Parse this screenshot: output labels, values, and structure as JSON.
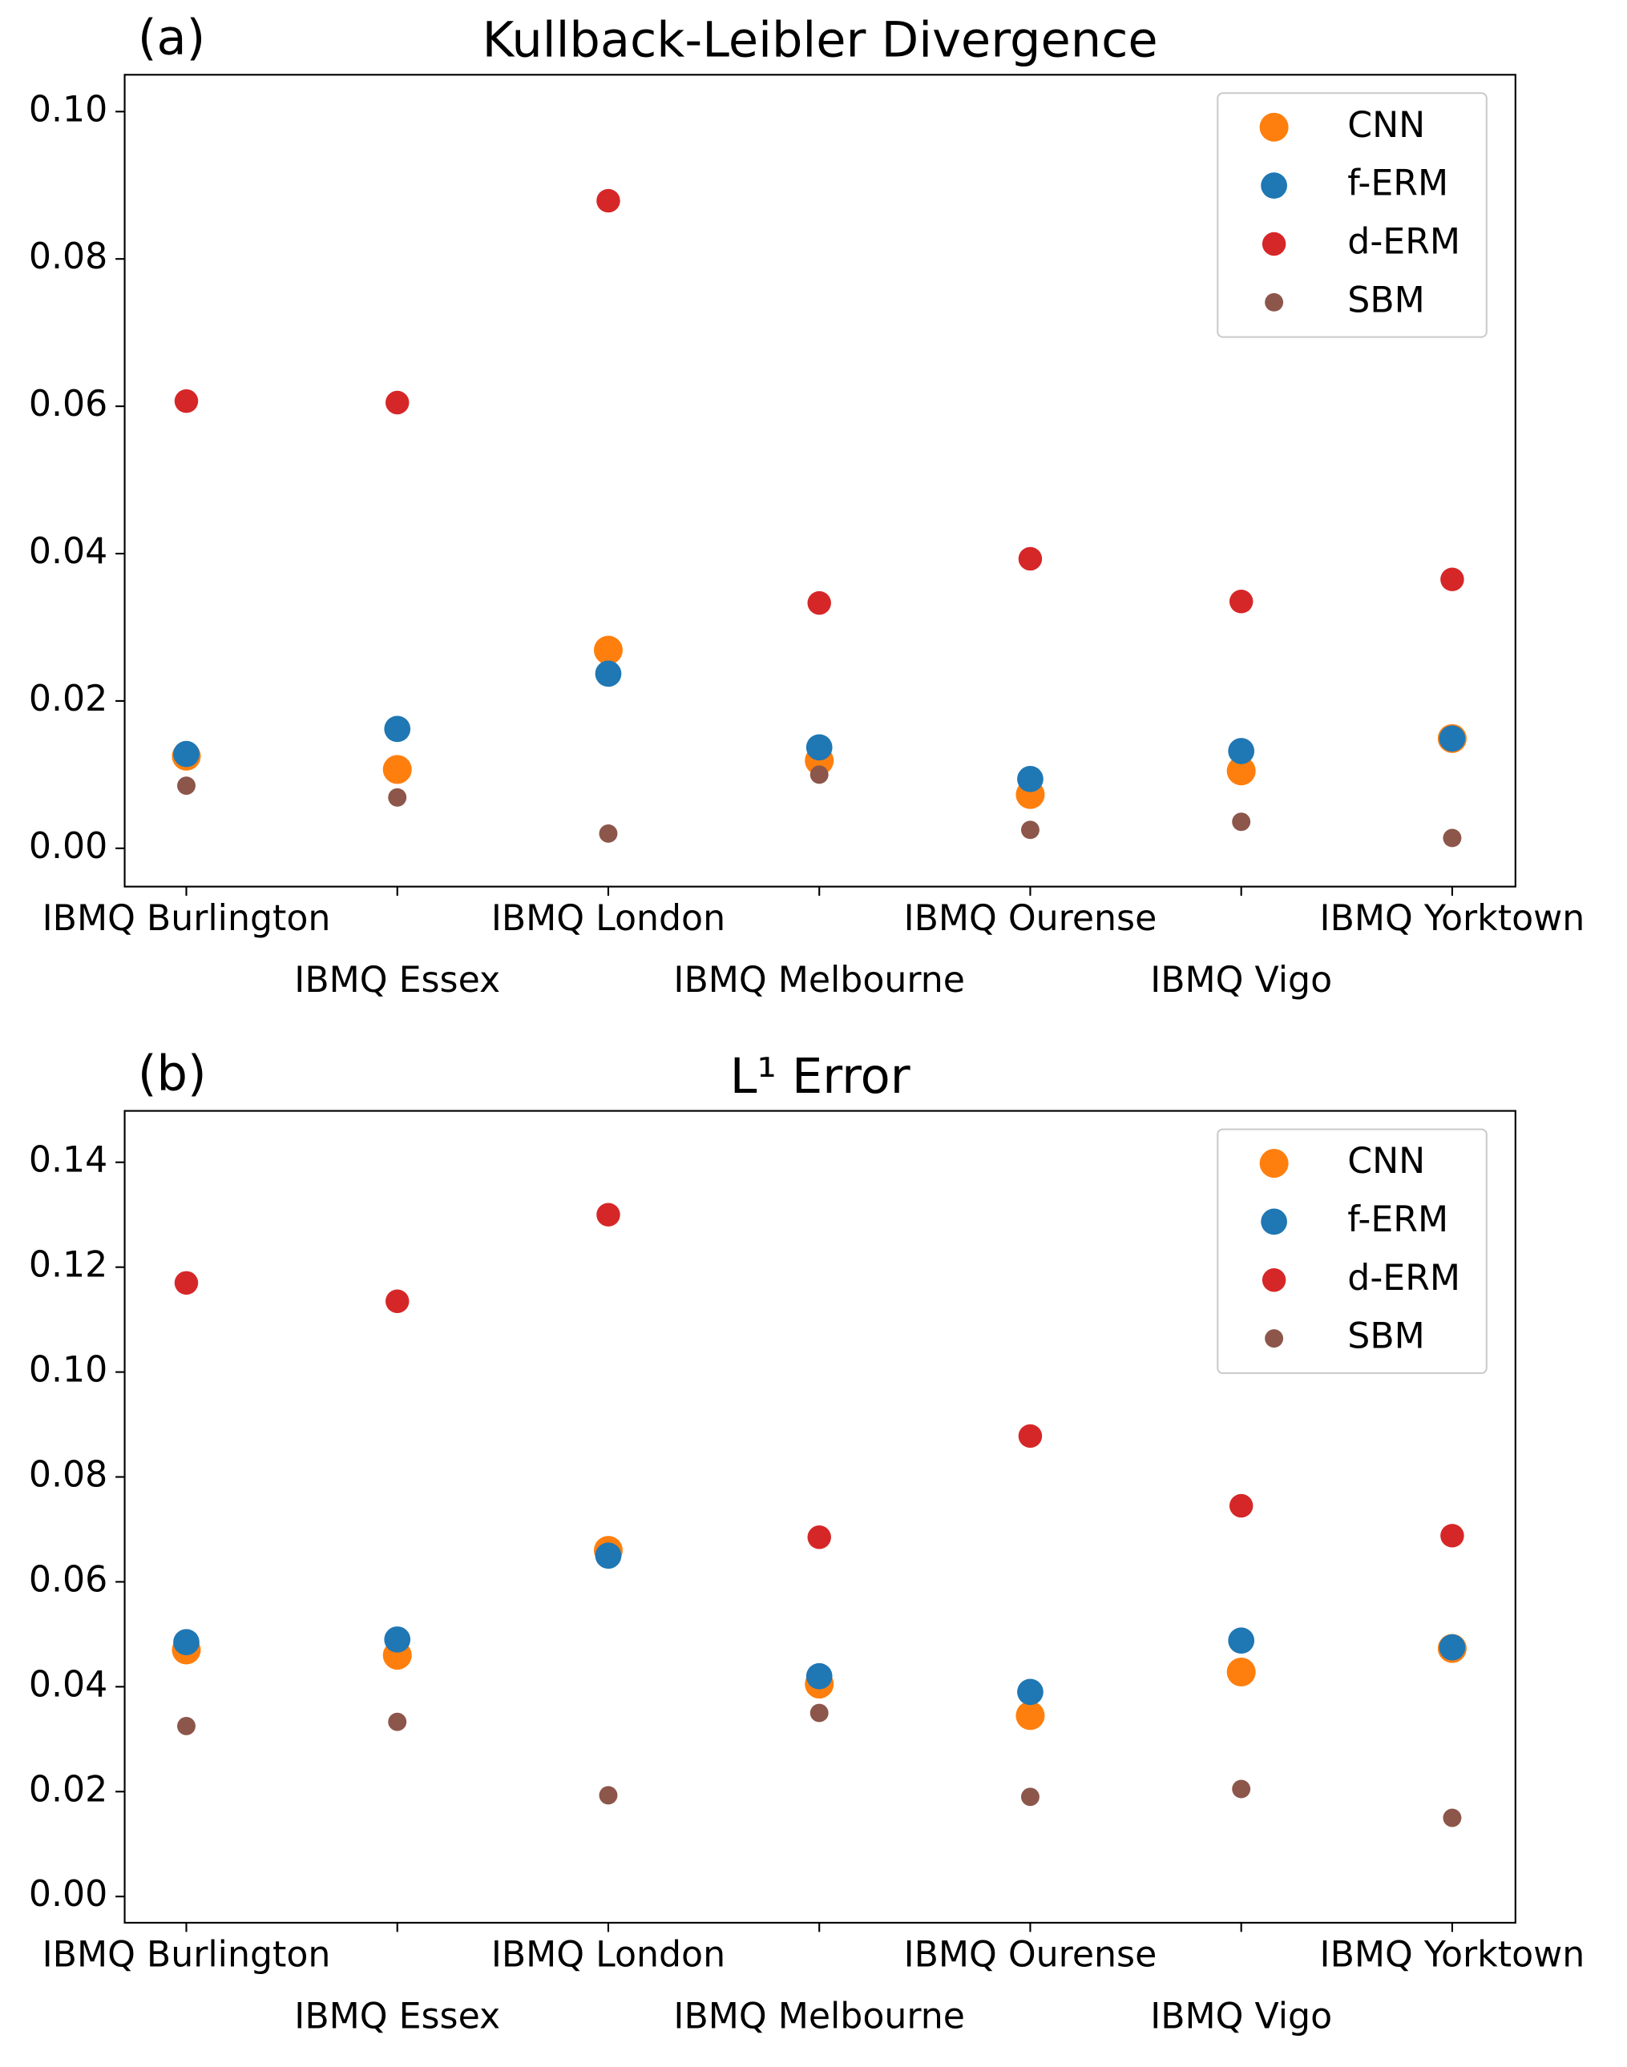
{
  "chart_data": [
    {
      "type": "scatter",
      "panel_label": "(a)",
      "title": "Kullback-Leibler Divergence",
      "categories": [
        "IBMQ Burlington",
        "IBMQ Essex",
        "IBMQ London",
        "IBMQ Melbourne",
        "IBMQ Ourense",
        "IBMQ Vigo",
        "IBMQ Yorktown"
      ],
      "series": [
        {
          "name": "CNN",
          "color": "#ff7f0e",
          "values": [
            0.0125,
            0.0107,
            0.0269,
            0.0119,
            0.0073,
            0.0105,
            0.0149
          ]
        },
        {
          "name": "f-ERM",
          "color": "#1f77b4",
          "values": [
            0.0128,
            0.0162,
            0.0237,
            0.0137,
            0.0094,
            0.0132,
            0.0149
          ]
        },
        {
          "name": "d-ERM",
          "color": "#d62728",
          "values": [
            0.0607,
            0.0605,
            0.0879,
            0.0333,
            0.0393,
            0.0335,
            0.0365
          ]
        },
        {
          "name": "SBM",
          "color": "#8c564b",
          "values": [
            0.0085,
            0.0069,
            0.002,
            0.01,
            0.0025,
            0.0036,
            0.0014
          ]
        }
      ],
      "ylim": [
        -0.0052,
        0.105
      ],
      "yticks": [
        {
          "value": 0,
          "label": "0.00"
        },
        {
          "value": 0.02,
          "label": "0.02"
        },
        {
          "value": 0.04,
          "label": "0.04"
        },
        {
          "value": 0.06,
          "label": "0.06"
        },
        {
          "value": 0.08,
          "label": "0.08"
        },
        {
          "value": 0.1,
          "label": "0.10"
        }
      ],
      "legend": "upper right"
    },
    {
      "type": "scatter",
      "panel_label": "(b)",
      "title": "L¹ Error",
      "categories": [
        "IBMQ Burlington",
        "IBMQ Essex",
        "IBMQ London",
        "IBMQ Melbourne",
        "IBMQ Ourense",
        "IBMQ Vigo",
        "IBMQ Yorktown"
      ],
      "series": [
        {
          "name": "CNN",
          "color": "#ff7f0e",
          "values": [
            0.047,
            0.046,
            0.066,
            0.0405,
            0.0345,
            0.0428,
            0.0473
          ]
        },
        {
          "name": "f-ERM",
          "color": "#1f77b4",
          "values": [
            0.0485,
            0.049,
            0.065,
            0.042,
            0.039,
            0.0488,
            0.0475
          ]
        },
        {
          "name": "d-ERM",
          "color": "#d62728",
          "values": [
            0.117,
            0.1135,
            0.13,
            0.0685,
            0.0878,
            0.0745,
            0.0688
          ]
        },
        {
          "name": "SBM",
          "color": "#8c564b",
          "values": [
            0.0325,
            0.0333,
            0.0193,
            0.035,
            0.019,
            0.0205,
            0.015
          ]
        }
      ],
      "ylim": [
        -0.005,
        0.1498
      ],
      "yticks": [
        {
          "value": 0,
          "label": "0.00"
        },
        {
          "value": 0.02,
          "label": "0.02"
        },
        {
          "value": 0.04,
          "label": "0.04"
        },
        {
          "value": 0.06,
          "label": "0.06"
        },
        {
          "value": 0.08,
          "label": "0.08"
        },
        {
          "value": 0.1,
          "label": "0.10"
        },
        {
          "value": 0.12,
          "label": "0.12"
        },
        {
          "value": 0.14,
          "label": "0.14"
        }
      ],
      "legend": "upper right"
    }
  ]
}
